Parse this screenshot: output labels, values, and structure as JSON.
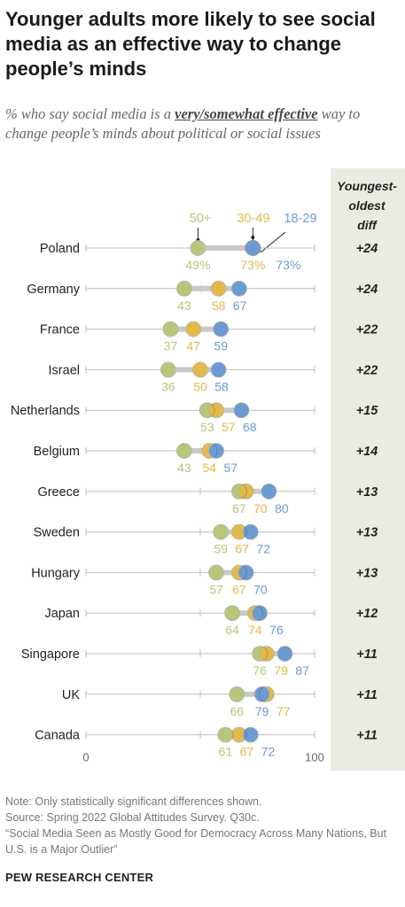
{
  "title": "Younger adults more likely to see social media as an effective way to change people’s minds",
  "subtitle": {
    "prefix": "% who say social media is a ",
    "emphasis": "very/somewhat effective",
    "suffix": " way to change people’s minds about political or social issues"
  },
  "diff_header": [
    "Youngest-",
    "oldest",
    "diff"
  ],
  "colors": {
    "age_50plus": "#b5c77a",
    "age_30_49": "#e3b94a",
    "age_18_29": "#6b9bd1",
    "diff_bg": "#ecebe3"
  },
  "chart_data": {
    "type": "dot",
    "xlim": [
      0,
      100
    ],
    "tick_labels": [
      "0",
      "100"
    ],
    "legend": [
      {
        "key": "age_50plus",
        "label": "50+"
      },
      {
        "key": "age_30_49",
        "label": "30-49"
      },
      {
        "key": "age_18_29",
        "label": "18-29"
      }
    ],
    "series_order": [
      "age_50plus",
      "age_30_49",
      "age_18_29"
    ],
    "rows": [
      {
        "country": "Poland",
        "age_50plus": 49,
        "age_30_49": 73,
        "age_18_29": 73,
        "diff": "+24",
        "labels": [
          "49%",
          "73%",
          "73%"
        ]
      },
      {
        "country": "Germany",
        "age_50plus": 43,
        "age_30_49": 58,
        "age_18_29": 67,
        "diff": "+24",
        "labels": [
          "43",
          "58",
          "67"
        ]
      },
      {
        "country": "France",
        "age_50plus": 37,
        "age_30_49": 47,
        "age_18_29": 59,
        "diff": "+22",
        "labels": [
          "37",
          "47",
          "59"
        ]
      },
      {
        "country": "Israel",
        "age_50plus": 36,
        "age_30_49": 50,
        "age_18_29": 58,
        "diff": "+22",
        "labels": [
          "36",
          "50",
          "58"
        ]
      },
      {
        "country": "Netherlands",
        "age_50plus": 53,
        "age_30_49": 57,
        "age_18_29": 68,
        "diff": "+15",
        "labels": [
          "53",
          "57",
          "68"
        ]
      },
      {
        "country": "Belgium",
        "age_50plus": 43,
        "age_30_49": 54,
        "age_18_29": 57,
        "diff": "+14",
        "labels": [
          "43",
          "54",
          "57"
        ]
      },
      {
        "country": "Greece",
        "age_50plus": 67,
        "age_30_49": 70,
        "age_18_29": 80,
        "diff": "+13",
        "labels": [
          "67",
          "70",
          "80"
        ]
      },
      {
        "country": "Sweden",
        "age_50plus": 59,
        "age_30_49": 67,
        "age_18_29": 72,
        "diff": "+13",
        "labels": [
          "59",
          "67",
          "72"
        ]
      },
      {
        "country": "Hungary",
        "age_50plus": 57,
        "age_30_49": 67,
        "age_18_29": 70,
        "diff": "+13",
        "labels": [
          "57",
          "67",
          "70"
        ]
      },
      {
        "country": "Japan",
        "age_50plus": 64,
        "age_30_49": 74,
        "age_18_29": 76,
        "diff": "+12",
        "labels": [
          "64",
          "74",
          "76"
        ]
      },
      {
        "country": "Singapore",
        "age_50plus": 76,
        "age_30_49": 79,
        "age_18_29": 87,
        "diff": "+11",
        "labels": [
          "76",
          "79",
          "87"
        ]
      },
      {
        "country": "UK",
        "age_50plus": 66,
        "age_30_49": 79,
        "age_18_29": 77,
        "diff": "+11",
        "labels": [
          "66",
          "77",
          "79"
        ]
      },
      {
        "country": "Canada",
        "age_50plus": 61,
        "age_30_49": 67,
        "age_18_29": 72,
        "diff": "+11",
        "labels": [
          "61",
          "67",
          "72"
        ]
      }
    ]
  },
  "notes": [
    "Note: Only statistically significant differences shown.",
    "Source: Spring 2022 Global Attitudes Survey. Q30c.",
    "“Social Media Seen as Mostly Good for Democracy Across Many Nations, But U.S. is a Major Outlier”"
  ],
  "footer": "PEW RESEARCH CENTER"
}
